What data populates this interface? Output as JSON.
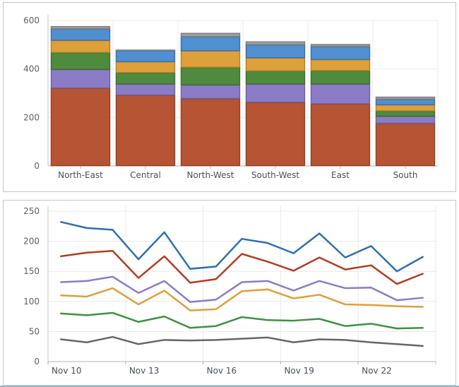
{
  "page": {
    "background": "#ffffff",
    "bottom_edge_color": "#9cb6cf"
  },
  "chart_data": [
    {
      "type": "bar",
      "stacked": true,
      "title": "",
      "legend": "none",
      "grid": true,
      "categories": [
        "North-East",
        "Central",
        "North-West",
        "South-West",
        "East",
        "South"
      ],
      "series": [
        {
          "name": "rust",
          "color": "#b65434",
          "border": "#8f4222",
          "values": [
            320,
            291,
            277,
            262,
            255,
            175
          ]
        },
        {
          "name": "purple",
          "color": "#8b7cc5",
          "border": "#6c60ab",
          "values": [
            77,
            46,
            56,
            75,
            82,
            29
          ]
        },
        {
          "name": "green",
          "color": "#4f8a3e",
          "border": "#3c6e2d",
          "values": [
            70,
            47,
            73,
            54,
            55,
            22
          ]
        },
        {
          "name": "orange",
          "color": "#dda03b",
          "border": "#b58224",
          "values": [
            50,
            45,
            68,
            54,
            46,
            25
          ]
        },
        {
          "name": "blue",
          "color": "#5190d0",
          "border": "#3a6fa9",
          "values": [
            47,
            46,
            58,
            54,
            53,
            23
          ]
        },
        {
          "name": "gray",
          "color": "#9d9d9d",
          "border": "#7d7d7d",
          "values": [
            11,
            3,
            15,
            13,
            10,
            10
          ]
        }
      ],
      "ylim": [
        0,
        600
      ],
      "yticks": [
        0,
        200,
        400,
        600
      ],
      "ytick_labels": [
        "0",
        "200",
        "400",
        "600"
      ],
      "grid_color": "#ececec",
      "axis_color": "#b3b3b3",
      "yaxis_line_color": "#c9c9c9",
      "ytick_label_color": "#5f5f5f",
      "xtick_label_color": "#47505a"
    },
    {
      "type": "line",
      "title": "",
      "legend": "none",
      "grid": true,
      "x": [
        "Nov 10",
        "Nov 11",
        "Nov 12",
        "Nov 13",
        "Nov 14",
        "Nov 15",
        "Nov 16",
        "Nov 17",
        "Nov 18",
        "Nov 19",
        "Nov 20",
        "Nov 21",
        "Nov 22",
        "Nov 23",
        "Nov 24"
      ],
      "xtick_labels": [
        "Nov 10",
        "Nov 13",
        "Nov 16",
        "Nov 19",
        "Nov 22"
      ],
      "xtick_indices": [
        0,
        3,
        6,
        9,
        12
      ],
      "series": [
        {
          "name": "blue",
          "color": "#2d6fb2",
          "values": [
            232,
            222,
            219,
            170,
            215,
            154,
            158,
            204,
            197,
            180,
            213,
            173,
            192,
            150,
            174
          ]
        },
        {
          "name": "red",
          "color": "#b23c22",
          "values": [
            175,
            181,
            184,
            139,
            175,
            131,
            137,
            179,
            166,
            151,
            173,
            153,
            160,
            129,
            146
          ]
        },
        {
          "name": "purple",
          "color": "#8b7cc5",
          "values": [
            132,
            134,
            141,
            114,
            134,
            99,
            103,
            132,
            134,
            118,
            134,
            122,
            123,
            102,
            106
          ]
        },
        {
          "name": "orange",
          "color": "#de9f3a",
          "values": [
            110,
            108,
            122,
            95,
            118,
            85,
            87,
            117,
            120,
            105,
            111,
            95,
            94,
            92,
            91
          ]
        },
        {
          "name": "green",
          "color": "#3f9140",
          "values": [
            80,
            77,
            81,
            66,
            75,
            56,
            59,
            74,
            69,
            68,
            71,
            59,
            63,
            55,
            56
          ]
        },
        {
          "name": "gray",
          "color": "#666666",
          "values": [
            37,
            32,
            41,
            29,
            36,
            35,
            36,
            38,
            40,
            32,
            37,
            36,
            32,
            29,
            26
          ]
        }
      ],
      "ylim": [
        0,
        250
      ],
      "yticks": [
        0,
        50,
        100,
        150,
        200,
        250
      ],
      "ytick_labels": [
        "0",
        "50",
        "100",
        "150",
        "200",
        "250"
      ],
      "grid_color": "#e9e9e9",
      "axis_color": "#b3b3b3",
      "ytick_label_color": "#5f5f5f",
      "xtick_label_color": "#47505a"
    }
  ]
}
